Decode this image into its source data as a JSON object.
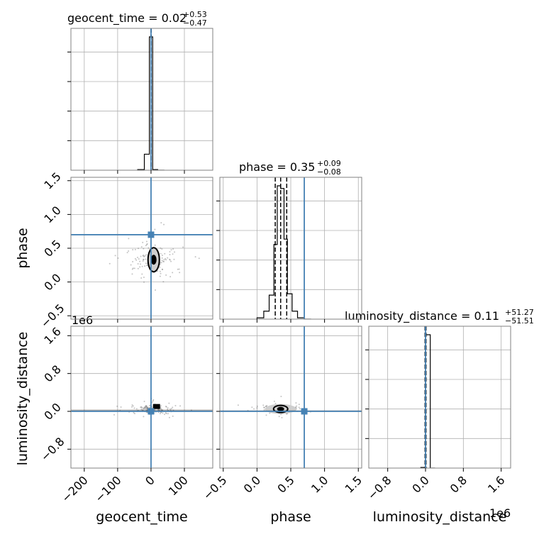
{
  "chart_data": {
    "type": "corner",
    "parameters": [
      "geocent_time",
      "phase",
      "luminosity_distance"
    ],
    "axis_labels": {
      "geocent_time": "geocent_time",
      "phase": "phase",
      "luminosity_distance": "luminosity_distance"
    },
    "offset_text": "1e6",
    "truth_color": "#4682b4",
    "truths": {
      "geocent_time": 0.0,
      "phase": 0.7,
      "luminosity_distance": 0.0
    },
    "grid": true,
    "titles": [
      {
        "param": "geocent_time",
        "base": "geocent_time = 0.02",
        "plus": "+0.53",
        "minus": "−0.47"
      },
      {
        "param": "phase",
        "base": "phase = 0.35",
        "plus": "+0.09",
        "minus": "−0.08"
      },
      {
        "param": "luminosity_distance",
        "base": "luminosity_distance = 0.11",
        "plus": "+51.27",
        "minus": "−51.51"
      }
    ],
    "ranges": {
      "geocent_time": [
        -240,
        185
      ],
      "phase": [
        -0.55,
        1.55
      ],
      "luminosity_distance": [
        -1200000,
        1800000
      ]
    },
    "ticks": {
      "geocent_time": {
        "values": [
          -200,
          -100,
          0,
          100
        ],
        "labels": [
          "−200",
          "−100",
          "0",
          "100"
        ]
      },
      "phase_x": {
        "values": [
          -0.5,
          0.0,
          0.5,
          1.0,
          1.5
        ],
        "labels": [
          "−0.5",
          "0.0",
          "0.5",
          "1.0",
          "1.5"
        ]
      },
      "phase_y": {
        "values": [
          -0.5,
          0.0,
          0.5,
          1.0,
          1.5
        ],
        "labels": [
          "−0.5",
          "0.0",
          "0.5",
          "1.0",
          "1.5"
        ]
      },
      "luminosity_distance": {
        "values": [
          -800000,
          0,
          800000,
          1600000
        ],
        "labels": [
          "−0.8",
          "0.0",
          "0.8",
          "1.6"
        ]
      }
    },
    "quantile_lines": {
      "geocent_time": [
        0.0,
        0.0,
        0.0
      ],
      "phase": [
        0.27,
        0.35,
        0.44
      ],
      "luminosity_distance": [
        -10000,
        0,
        10000
      ]
    },
    "histograms": {
      "geocent_time": {
        "edges": [
          -40,
          -20,
          -5,
          5,
          20,
          40
        ],
        "counts": [
          0.005,
          0.12,
          1.0,
          0.005,
          0
        ]
      },
      "phase": {
        "edges": [
          0.0,
          0.1,
          0.18,
          0.25,
          0.3,
          0.35,
          0.4,
          0.45,
          0.52,
          0.6,
          0.7,
          0.8
        ],
        "counts": [
          0.01,
          0.06,
          0.18,
          0.56,
          1.0,
          0.98,
          0.6,
          0.19,
          0.06,
          0.01,
          0
        ]
      },
      "luminosity_distance": {
        "edges": [
          -100000,
          0,
          100000,
          200000
        ],
        "counts": [
          0.005,
          1.0,
          0
        ]
      }
    },
    "samples_2d": {
      "phase_vs_geocent_time": {
        "center": [
          8,
          0.33
        ],
        "contour_half_width": [
          7,
          0.12
        ]
      },
      "luminosity_distance_vs_geocent_time": {
        "center": [
          8,
          50000
        ]
      },
      "luminosity_distance_vs_phase": {
        "center": [
          0.35,
          50000
        ],
        "contour_half_width": [
          0.1,
          40000
        ]
      }
    }
  }
}
